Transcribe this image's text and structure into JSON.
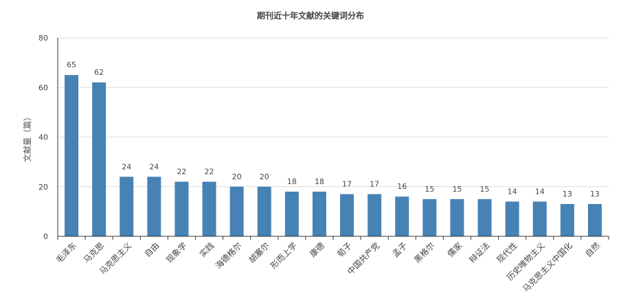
{
  "chart_data": {
    "type": "bar",
    "title": "期刊近十年文献的关键词分布",
    "ylabel": "文献量（篇）",
    "xlabel": "",
    "ylim": [
      0,
      80
    ],
    "yticks": [
      0,
      20,
      40,
      60,
      80
    ],
    "grid": true,
    "legend": "none",
    "bar_color": "#4682b4",
    "categories": [
      "毛泽东",
      "马克思",
      "马克思主义",
      "自由",
      "现象学",
      "实践",
      "海德格尔",
      "胡塞尔",
      "形而上学",
      "康德",
      "荀子",
      "中国共产党",
      "孟子",
      "黑格尔",
      "儒家",
      "辩证法",
      "现代性",
      "历史唯物主义",
      "马克思主义中国化",
      "自然"
    ],
    "values": [
      65,
      62,
      24,
      24,
      22,
      22,
      20,
      20,
      18,
      18,
      17,
      17,
      16,
      15,
      15,
      15,
      14,
      14,
      13,
      13
    ]
  }
}
